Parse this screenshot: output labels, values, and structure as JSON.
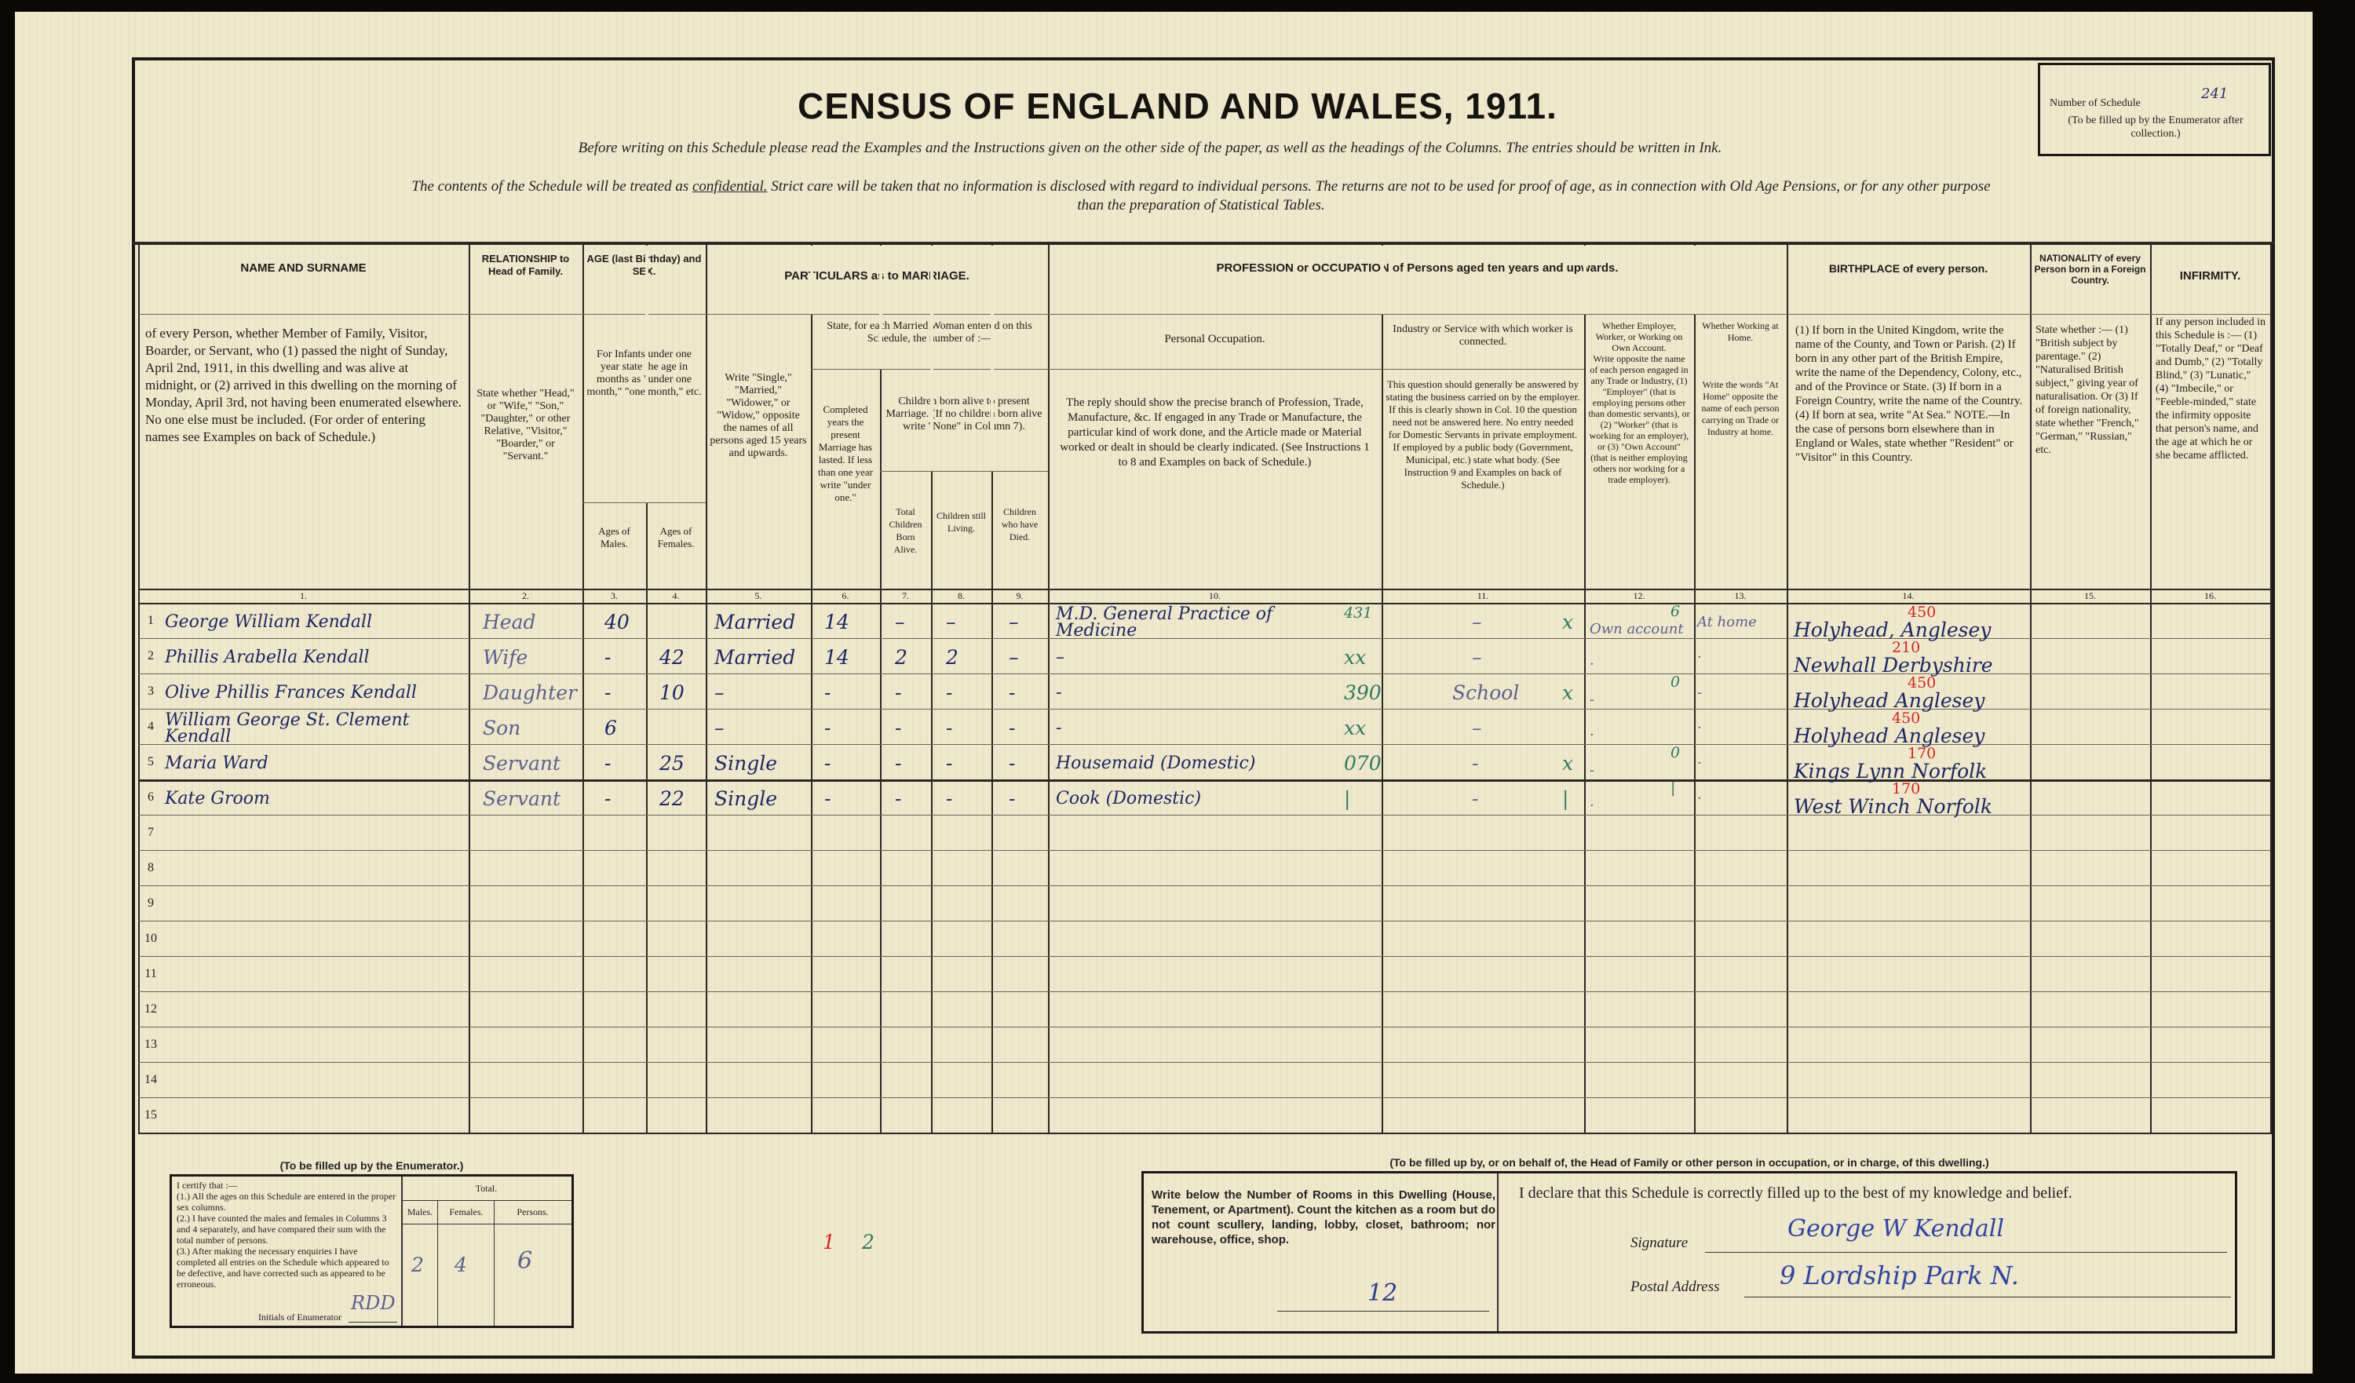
{
  "header": {
    "title": "CENSUS OF ENGLAND AND WALES, 1911.",
    "instruction": "Before writing on this Schedule please read the Examples and the Instructions given on the other side of the paper, as well as the headings of the Columns.  The entries should be written in Ink.",
    "confidential_pre": "The contents of the Schedule will be treated as ",
    "confidential_word": "confidential.",
    "confidential_post": "  Strict care will be taken that no information is disclosed with regard to individual persons.  The returns are not to be used for proof of age, as in connection with Old Age Pensions, or for any other purpose",
    "confidential_line2": "than the preparation of Statistical Tables.",
    "schedule_label": "Number of Schedule",
    "schedule_number": "241",
    "schedule_note": "(To be filled up by the Enumerator after collection.)"
  },
  "columns": {
    "name_title": "NAME AND SURNAME",
    "name_desc": "of every Person, whether Member of Family, Visitor, Boarder, or Servant, who (1) passed the night of Sunday, April 2nd, 1911, in this dwelling and was alive at midnight, or (2) arrived in this dwelling on the morning of Monday, April 3rd, not having been enumerated elsewhere. No one else must be included. (For order of entering names see Examples on back of Schedule.)",
    "rel_title": "RELATIONSHIP to Head of Family.",
    "rel_desc": "State whether \"Head,\" or \"Wife,\" \"Son,\" \"Daughter,\" or other Relative, \"Visitor,\" \"Boarder,\" or \"Servant.\"",
    "age_title": "AGE (last Birthday) and SEX.",
    "age_desc": "For Infants under one year state the age in months as \"under one month,\" \"one month,\" etc.",
    "age_males": "Ages of Males.",
    "age_females": "Ages of Females.",
    "marriage_title": "PARTICULARS as to MARRIAGE.",
    "marriage_desc": "Write \"Single,\" \"Married,\" \"Widower,\" or \"Widow,\" opposite the names of all persons aged 15 years and upwards.",
    "married_woman": "State, for each Married Woman entered on this Schedule, the number of :—",
    "years_married": "Completed years the present Marriage has lasted. If less than one year write \"under one.\"",
    "children_born": "Children born alive to present Marriage. (If no children born alive write \"None\" in Column 7).",
    "total_children": "Total Children Born Alive.",
    "children_living": "Children still Living.",
    "children_died": "Children who have Died.",
    "profession_title": "PROFESSION or OCCUPATION of Persons aged ten years and upwards.",
    "personal_occ": "Personal Occupation.",
    "personal_occ_desc": "The reply should show the precise branch of Profession, Trade, Manufacture, &c. If engaged in any Trade or Manufacture, the particular kind of work done, and the Article made or Material worked or dealt in should be clearly indicated. (See Instructions 1 to 8 and Examples on back of Schedule.)",
    "industry": "Industry or Service with which worker is connected.",
    "industry_desc": "This question should generally be answered by stating the business carried on by the employer. If this is clearly shown in Col. 10 the question need not be answered here. No entry needed for Domestic Servants in private employment. If employed by a public body (Government, Municipal, etc.) state what body. (See Instruction 9 and Examples on back of Schedule.)",
    "employer": "Whether Employer, Worker, or Working on Own Account.",
    "employer_desc": "Write opposite the name of each person engaged in any Trade or Industry, (1) \"Employer\" (that is employing persons other than domestic servants), or (2) \"Worker\" (that is working for an employer), or (3) \"Own Account\" (that is neither employing others nor working for a trade employer).",
    "home": "Whether Working at Home.",
    "home_desc": "Write the words \"At Home\" opposite the name of each person carrying on Trade or Industry at home.",
    "birthplace_title": "BIRTHPLACE of every person.",
    "birthplace_desc": "(1) If born in the United Kingdom, write the name of the County, and Town or Parish. (2) If born in any other part of the British Empire, write the name of the Dependency, Colony, etc., and of the Province or State. (3) If born in a Foreign Country, write the name of the Country. (4) If born at sea, write \"At Sea.\" NOTE.—In the case of persons born elsewhere than in England or Wales, state whether \"Resident\" or \"Visitor\" in this Country.",
    "nationality_title": "NATIONALITY of every Person born in a Foreign Country.",
    "nationality_desc": "State whether :— (1) \"British subject by parentage.\" (2) \"Naturalised British subject,\" giving year of naturalisation. Or (3) If of foreign nationality, state whether \"French,\" \"German,\" \"Russian,\" etc.",
    "infirmity_title": "INFIRMITY.",
    "infirmity_desc": "If any person included in this Schedule is :— (1) \"Totally Deaf,\" or \"Deaf and Dumb,\" (2) \"Totally Blind,\" (3) \"Lunatic,\" (4) \"Imbecile,\" or \"Feeble-minded,\" state the infirmity opposite that person's name, and the age at which he or she became afflicted.",
    "numbers": [
      "1.",
      "2.",
      "3.",
      "4.",
      "5.",
      "6.",
      "7.",
      "8.",
      "9.",
      "10.",
      "11.",
      "12.",
      "13.",
      "14.",
      "15.",
      "16."
    ]
  },
  "row_numbers": [
    "1",
    "2",
    "3",
    "4",
    "5",
    "6",
    "7",
    "8",
    "9",
    "10",
    "11",
    "12",
    "13",
    "14",
    "15"
  ],
  "rows": [
    {
      "name": "George William Kendall",
      "rel": "Head",
      "male": "40",
      "female": "",
      "status": "Married",
      "years": "14",
      "total": "–",
      "living": "–",
      "died": "–",
      "occ": "M.D. General Practice of Medicine",
      "occ_code": "431",
      "industry": "–",
      "emp_mark": "x",
      "employer": "Own account",
      "emp_code": "6",
      "home": "At home",
      "birth": "Holyhead, Anglesey",
      "birth_code": "450"
    },
    {
      "name": "Phillis Arabella Kendall",
      "rel": "Wife",
      "male": "-",
      "female": "42",
      "status": "Married",
      "years": "14",
      "total": "2",
      "living": "2",
      "died": "–",
      "occ": "–",
      "occ_code": "xx",
      "industry": "–",
      "emp_mark": "",
      "employer": "·",
      "emp_code": "",
      "home": "·",
      "birth": "Newhall Derbyshire",
      "birth_code": "210"
    },
    {
      "name": "Olive Phillis Frances Kendall",
      "rel": "Daughter",
      "male": "-",
      "female": "10",
      "status": "–",
      "years": "-",
      "total": "-",
      "living": "-",
      "died": "-",
      "occ": "-",
      "occ_code": "390",
      "industry": "School",
      "emp_mark": "x",
      "employer": "-",
      "emp_code": "0",
      "home": "-",
      "birth": "Holyhead Anglesey",
      "birth_code": "450"
    },
    {
      "name": "William George St. Clement Kendall",
      "rel": "Son",
      "male": "6",
      "female": "",
      "status": "–",
      "years": "-",
      "total": "-",
      "living": "-",
      "died": "-",
      "occ": "-",
      "occ_code": "xx",
      "industry": "–",
      "emp_mark": "",
      "employer": "·",
      "emp_code": "",
      "home": "·",
      "birth": "Holyhead Anglesey",
      "birth_code": "450"
    },
    {
      "name": "Maria Ward",
      "rel": "Servant",
      "male": "-",
      "female": "25",
      "status": "Single",
      "years": "-",
      "total": "-",
      "living": "-",
      "died": "-",
      "occ": "Housemaid (Domestic)",
      "occ_code": "070",
      "industry": "-",
      "emp_mark": "x",
      "employer": "-",
      "emp_code": "0",
      "home": "·",
      "birth": "Kings Lynn Norfolk",
      "birth_code": "170"
    },
    {
      "name": "Kate Groom",
      "rel": "Servant",
      "male": "-",
      "female": "22",
      "status": "Single",
      "years": "-",
      "total": "-",
      "living": "-",
      "died": "-",
      "occ": "Cook (Domestic)",
      "occ_code": "|",
      "industry": "-",
      "emp_mark": "|",
      "employer": "·",
      "emp_code": "|",
      "home": "·",
      "birth": "West Winch Norfolk",
      "birth_code": "170"
    }
  ],
  "enumerator": {
    "heading": "(To be filled up by the Enumerator.)",
    "certify": "I certify that :—",
    "items": [
      "(1.) All the ages on this Schedule are entered in the proper sex columns.",
      "(2.) I have counted the males and females in Columns 3 and 4 separately, and have compared their sum with the total number of persons.",
      "(3.) After making the necessary enquiries I have completed all entries on the Schedule which appeared to be defective, and have corrected such as appeared to be erroneous."
    ],
    "initials_label": "Initials of Enumerator",
    "initials": "RDD",
    "total_label": "Total.",
    "males_label": "Males.",
    "females_label": "Females.",
    "persons_label": "Persons.",
    "males": "2",
    "females": "4",
    "persons": "6",
    "mark_red": "1",
    "mark_green": "2"
  },
  "head": {
    "heading": "(To be filled up by, or on behalf of, the Head of Family or other person in occupation, or in charge, of this dwelling.)",
    "rooms_text": "Write below the Number of Rooms in this Dwelling (House, Tenement, or Apartment). Count the kitchen as a room but do not count scullery, landing, lobby, closet, bathroom; nor warehouse, office, shop.",
    "rooms": "12",
    "declaration": "I declare that this Schedule is correctly filled up to the best of my knowledge and belief.",
    "signature_label": "Signature",
    "signature": "George W Kendall",
    "address_label": "Postal Address",
    "address": "9 Lordship Park N."
  },
  "colors": {
    "ink": "#1c2760",
    "red_ink": "#d3241f",
    "green_ink": "#2f7a5e",
    "paper": "#efe8cd"
  }
}
